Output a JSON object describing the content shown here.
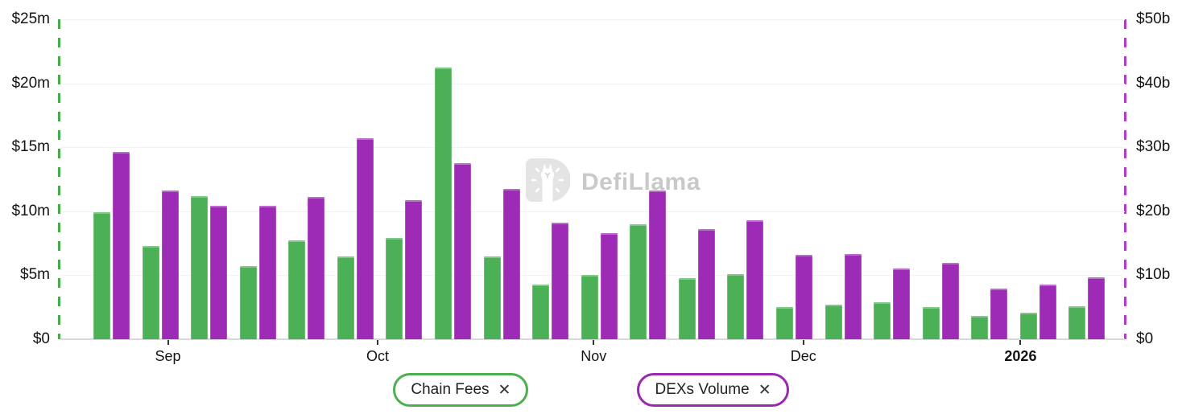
{
  "watermark": {
    "text": "DefiLlama"
  },
  "legend": {
    "items": [
      {
        "label": "Chain Fees",
        "border_color": "#4caf50",
        "close": "✕"
      },
      {
        "label": "DEXs Volume",
        "border_color": "#9c27b0",
        "close": "✕"
      }
    ]
  },
  "chart_data": {
    "type": "bar",
    "title": "",
    "grid": true,
    "legend_position": "bottom",
    "bar_colors": {
      "chain_fees": "#4bb056",
      "dexs_volume": "#9e2bb5"
    },
    "left_axis": {
      "series": "Chain Fees",
      "min": 0,
      "max": 25,
      "unit": "USD millions",
      "tick_labels_top_to_bottom": [
        "$25m",
        "$20m",
        "$15m",
        "$10m",
        "$5m",
        "$0"
      ],
      "line_color": "#45ac4c"
    },
    "right_axis": {
      "series": "DEXs Volume",
      "min": 0,
      "max": 50,
      "unit": "USD billions",
      "tick_labels_top_to_bottom": [
        "$50b",
        "$40b",
        "$30b",
        "$20b",
        "$10b",
        "$0"
      ],
      "line_color": "#b13cc9"
    },
    "x_axis": {
      "tick_labels": [
        {
          "text": "Sep",
          "pos": 0.101,
          "bold": false
        },
        {
          "text": "Oct",
          "pos": 0.298,
          "bold": false
        },
        {
          "text": "Nov",
          "pos": 0.501,
          "bold": false
        },
        {
          "text": "Dec",
          "pos": 0.698,
          "bold": false
        },
        {
          "text": "2026",
          "pos": 0.902,
          "bold": true
        }
      ]
    },
    "series": [
      {
        "name": "Chain Fees",
        "axis": "left",
        "color": "#4bb056",
        "unit": "USD millions",
        "values": [
          9.9,
          7.3,
          11.2,
          5.7,
          7.7,
          6.5,
          7.9,
          21.2,
          6.5,
          4.3,
          5.0,
          9.0,
          4.8,
          5.1,
          2.5,
          2.7,
          2.9,
          2.5,
          1.8,
          2.1,
          2.6
        ]
      },
      {
        "name": "DEXs Volume",
        "axis": "right",
        "color": "#9e2bb5",
        "unit": "USD billions",
        "values": [
          29.3,
          23.2,
          20.9,
          20.9,
          22.2,
          31.4,
          21.7,
          27.5,
          23.5,
          18.2,
          16.6,
          23.2,
          17.2,
          18.6,
          13.2,
          13.3,
          11.1,
          11.9,
          7.9,
          8.5,
          9.7
        ]
      }
    ]
  }
}
